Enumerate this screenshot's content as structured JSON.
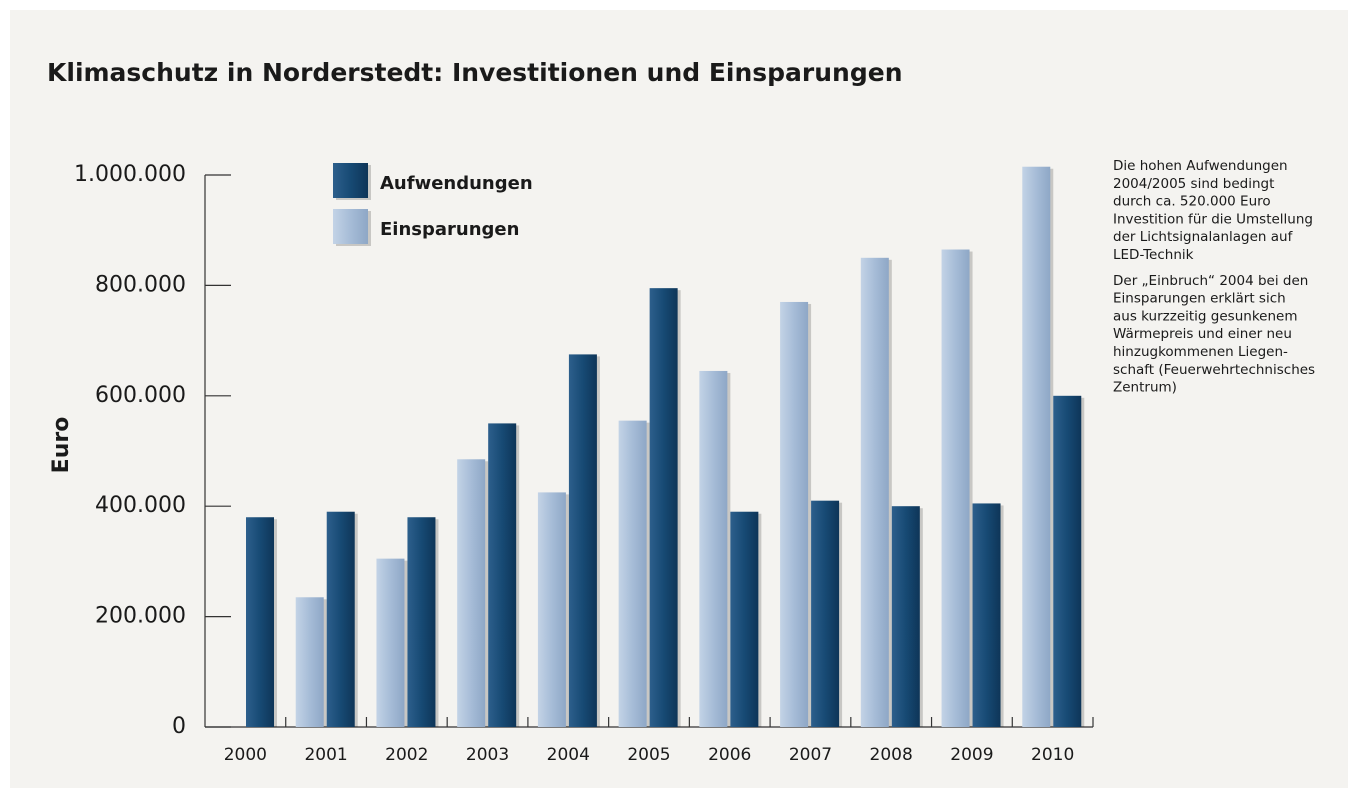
{
  "chart_data": {
    "type": "bar",
    "title": "Klimaschutz in Norderstedt: Investitionen und Einsparungen",
    "y_label": "Euro",
    "categories": [
      "2000",
      "2001",
      "2002",
      "2003",
      "2004",
      "2005",
      "2006",
      "2007",
      "2008",
      "2009",
      "2010"
    ],
    "series": [
      {
        "name": "Einsparungen",
        "color": "#a6bcd7",
        "values": [
          null,
          235000,
          305000,
          485000,
          425000,
          555000,
          645000,
          770000,
          850000,
          865000,
          1015000
        ]
      },
      {
        "name": "Aufwendungen",
        "color": "#174a74",
        "values": [
          380000,
          390000,
          380000,
          550000,
          675000,
          795000,
          390000,
          410000,
          400000,
          405000,
          600000
        ]
      }
    ],
    "legend_order": [
      1,
      0
    ],
    "ylim": [
      0,
      1000000
    ],
    "yticks": [
      0,
      {
        "value": 200000,
        "label": "200.000"
      },
      {
        "value": 400000,
        "label": "400.000"
      },
      {
        "value": 600000,
        "label": "600.000"
      },
      {
        "value": 800000,
        "label": "800.000"
      },
      {
        "value": 1000000,
        "label": "1.000.000"
      }
    ],
    "annotations": [
      [
        "Die hohen Aufwendungen",
        "2004/2005 sind bedingt",
        "durch ca. 520.000 Euro",
        "Investition für die Umstellung",
        "der Lichtsignalanlagen auf",
        "LED-Technik"
      ],
      [
        "Der „Einbruch“ 2004 bei den",
        "Einsparungen erklärt sich",
        "aus kurzzeitig gesunkenem",
        "Wärmepreis und einer neu",
        "hinzugkommenen Liegen-",
        "schaft (Feuerwehrtechnisches",
        "Zentrum)"
      ]
    ]
  }
}
